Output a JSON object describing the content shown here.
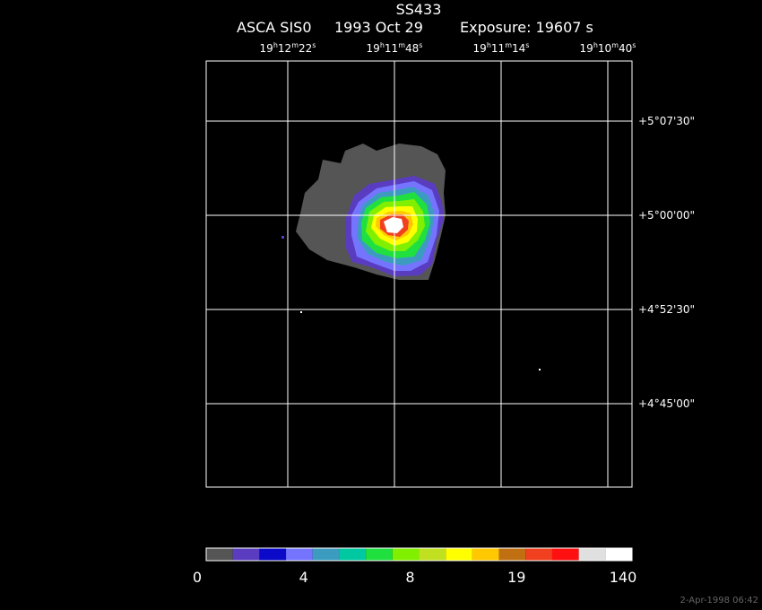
{
  "header": {
    "title": "SS433",
    "instrument": "ASCA SIS0",
    "date": "1993 Oct 29",
    "exposure": "Exposure: 19607 s"
  },
  "ra_labels": [
    [
      "19",
      "h",
      "12",
      "m",
      "22",
      "s"
    ],
    [
      "19",
      "h",
      "11",
      "m",
      "48",
      "s"
    ],
    [
      "19",
      "h",
      "11",
      "m",
      "14",
      "s"
    ],
    [
      "19",
      "h",
      "10",
      "m",
      "40",
      "s"
    ]
  ],
  "dec_labels": [
    "+5°07'30\"",
    "+5°00'00\"",
    "+4°52'30\"",
    "+4°45'00\""
  ],
  "colorbar": {
    "colors": [
      "#555555",
      "#5a3cc0",
      "#0a0ac8",
      "#7474ff",
      "#3c9cc0",
      "#00c8a0",
      "#20e040",
      "#80f000",
      "#c0e020",
      "#ffff00",
      "#ffc800",
      "#c07010",
      "#f04020",
      "#ff1010",
      "#e0e0e0",
      "#ffffff"
    ],
    "labels": [
      "0",
      "4",
      "8",
      "19",
      "140"
    ]
  },
  "timestamp": "2-Apr-1998 06:42"
}
